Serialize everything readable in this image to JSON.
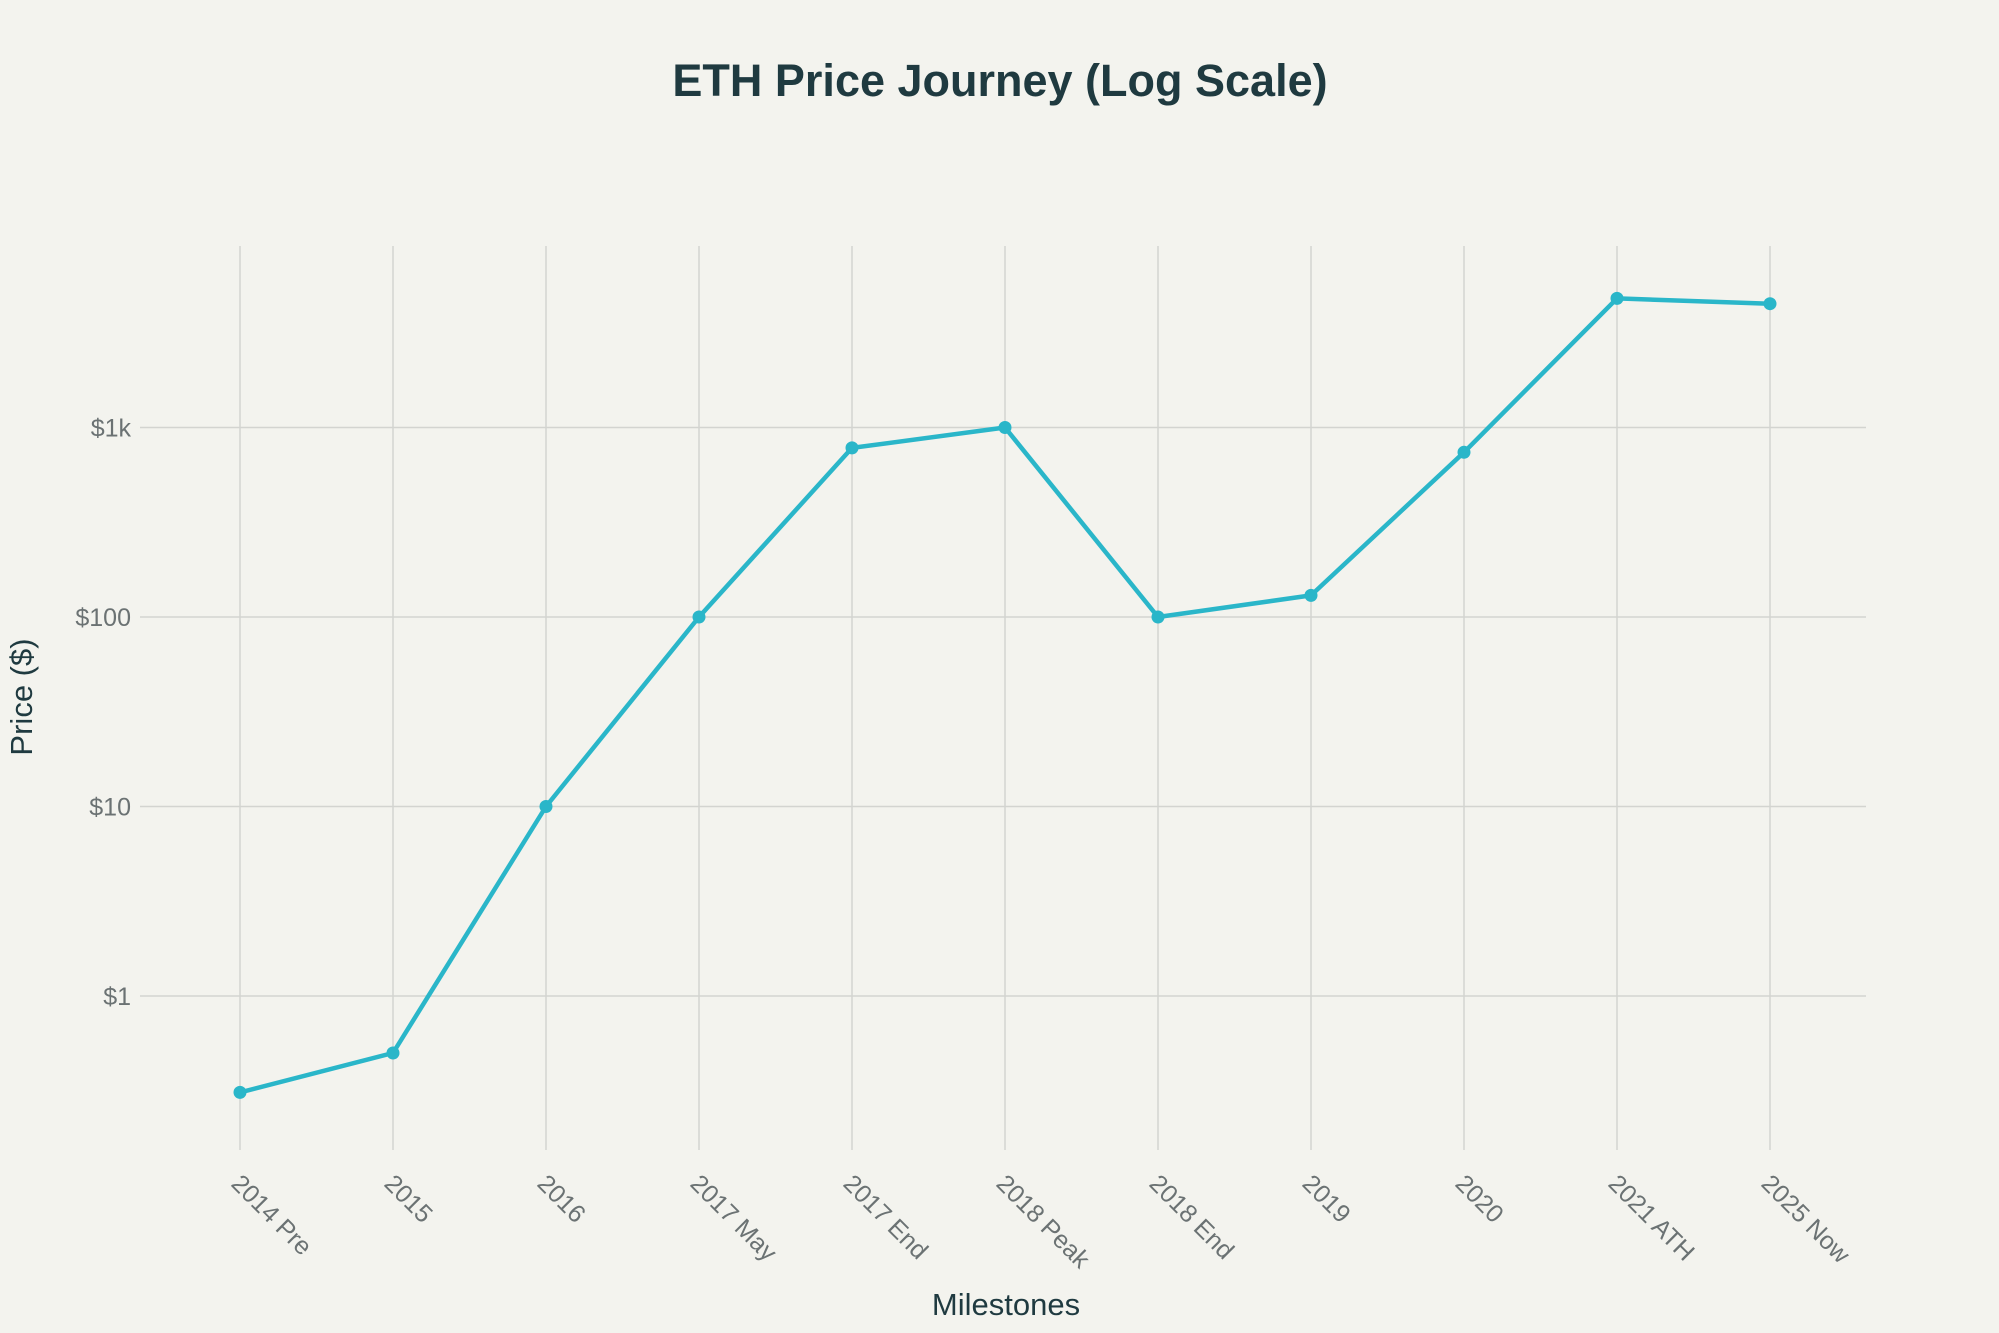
{
  "chart_data": {
    "type": "line",
    "title": "ETH Price Journey (Log Scale)",
    "xlabel": "Milestones",
    "ylabel": "Price ($)",
    "y_scale": "log",
    "ylim": [
      0.15,
      8000
    ],
    "grid": true,
    "categories": [
      "2014 Pre",
      "2015",
      "2016",
      "2017 May",
      "2017 End",
      "2018 Peak",
      "2018 End",
      "2019",
      "2020",
      "2021 ATH",
      "2025 Now"
    ],
    "y_ticks": [
      {
        "value": 1,
        "label": "$1"
      },
      {
        "value": 10,
        "label": "$10"
      },
      {
        "value": 100,
        "label": "$100"
      },
      {
        "value": 1000,
        "label": "$1k"
      }
    ],
    "series": [
      {
        "color": "#2ab6c9",
        "values": [
          0.31,
          0.5,
          10,
          100,
          780,
          1000,
          100,
          130,
          740,
          4800,
          4500
        ]
      }
    ]
  }
}
